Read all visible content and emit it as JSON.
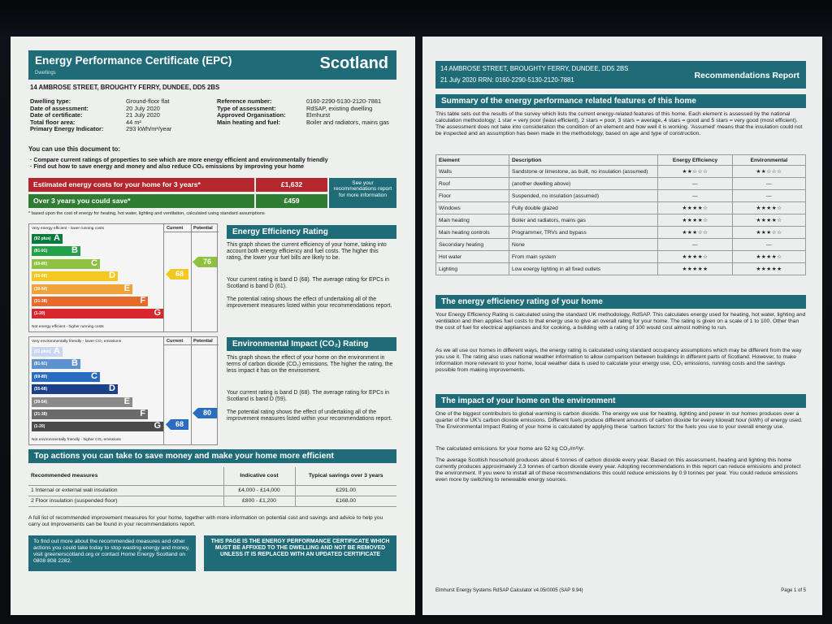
{
  "left": {
    "title": "Energy Performance Certificate (EPC)",
    "subtitle": "Dwellings",
    "country": "Scotland",
    "address": "14 AMBROSE STREET, BROUGHTY FERRY, DUNDEE, DD5 2BS",
    "details_left": [
      {
        "k": "Dwelling type:",
        "v": "Ground-floor flat"
      },
      {
        "k": "Date of assessment:",
        "v": "20 July 2020"
      },
      {
        "k": "Date of certificate:",
        "v": "21 July 2020"
      },
      {
        "k": "Total floor area:",
        "v": "44 m²"
      },
      {
        "k": "Primary Energy Indicator:",
        "v": "293 kWh/m²/year"
      }
    ],
    "details_right": [
      {
        "k": "Reference number:",
        "v": "0160-2290-5130-2120-7881"
      },
      {
        "k": "Type of assessment:",
        "v": "RdSAP, existing dwelling"
      },
      {
        "k": "Approved Organisation:",
        "v": "Elmhurst"
      },
      {
        "k": "Main heating and fuel:",
        "v": "Boiler and radiators, mains gas"
      }
    ],
    "use_title": "You can use this document to:",
    "use_items": [
      "Compare current ratings of properties to see which are more energy efficient and environmentally friendly",
      "Find out how to save energy and money and also reduce CO₂ emissions by improving your home"
    ],
    "cost_label": "Estimated energy costs for your home for 3 years*",
    "cost_value": "£1,632",
    "save_label": "Over 3 years you could save*",
    "save_value": "£459",
    "see_box": "See your recommendations report for more information",
    "footnote": "* based upon the cost of energy for heating, hot water, lighting and ventilation, calculated using standard assumptions",
    "ee_chart": {
      "top_label": "Very energy efficient - lower running costs",
      "bottom_label": "Not energy efficient - higher running costs",
      "col_current": "Current",
      "col_potential": "Potential",
      "current": "68",
      "potential": "76"
    },
    "ei_chart": {
      "top_label": "Very environmentally friendly - lower CO₂ emissions",
      "bottom_label": "Not environmentally friendly - higher CO₂ emissions",
      "col_current": "Current",
      "col_potential": "Potential",
      "current": "68",
      "potential": "80"
    },
    "bands": [
      {
        "range": "(92 plus)",
        "letter": "A"
      },
      {
        "range": "(81-91)",
        "letter": "B"
      },
      {
        "range": "(69-80)",
        "letter": "C"
      },
      {
        "range": "(55-68)",
        "letter": "D"
      },
      {
        "range": "(39-54)",
        "letter": "E"
      },
      {
        "range": "(21-38)",
        "letter": "F"
      },
      {
        "range": "(1-20)",
        "letter": "G"
      }
    ],
    "ee_title": "Energy Efficiency Rating",
    "ee_p1": "This graph shows the current efficiency of your home, taking into account both energy efficiency and fuel costs. The higher this rating, the lower your fuel bills are likely to be.",
    "ee_p2": "Your current rating is band D (68). The average rating for EPCs in Scotland is band D (61).",
    "ee_p3": "The potential rating shows the effect of undertaking all of the improvement measures listed within your recommendations report.",
    "ei_title": "Environmental Impact (CO₂) Rating",
    "ei_p1": "This graph shows the effect of your home on the environment in terms of carbon dioxide (CO₂) emissions. The higher the rating, the less impact it has on the environment.",
    "ei_p2": "Your current rating is band D (68). The average rating for EPCs in Scotland is band D (59).",
    "ei_p3": "The potential rating shows the effect of undertaking all of the improvement measures listed within your recommendations report.",
    "top_actions_title": "Top actions you can take to save money and make your home more efficient",
    "measures_head": [
      "Recommended measures",
      "Indicative cost",
      "Typical savings over 3 years"
    ],
    "measures": [
      [
        "1 Internal or external wall insulation",
        "£4,000 - £14,000",
        "£291.00"
      ],
      [
        "2 Floor insulation (suspended floor)",
        "£800 - £1,200",
        "£168.00"
      ]
    ],
    "full_list": "A full list of recommended improvement measures for your home, together with more information on potential cost and savings and advice to help you carry out improvements can be found in your recommendations report.",
    "find_out": "To find out more about the recommended measures and other actions you could take today to stop wasting energy and money, visit greenerscotland.org or contact Home Energy Scotland on 0808 808 2282.",
    "notice": "THIS PAGE IS THE ENERGY PERFORMANCE CERTIFICATE WHICH MUST BE AFFIXED TO THE DWELLING AND NOT BE REMOVED UNLESS IT IS REPLACED WITH AN UPDATED CERTIFICATE"
  },
  "right": {
    "address": "14 AMBROSE STREET, BROUGHTY FERRY, DUNDEE, DD5 2BS",
    "rrn": "21 July 2020 RRN: 0160-2290-5130-2120-7881",
    "report": "Recommendations Report",
    "summary_title": "Summary of the energy performance related features of this home",
    "summary_text": "This table sets out the results of the survey which lists the current energy-related features of this home. Each element is assessed by the national calculation methodology; 1 star = very poor (least efficient), 2 stars = poor, 3 stars = average, 4 stars = good and 5 stars = very good (most efficient). The assessment does not take into consideration the condition of an element and how well it is working. 'Assumed' means that the insulation could not be inspected and an assumption has been made in the methodology, based on age and type of construction.",
    "features_head": [
      "Element",
      "Description",
      "Energy Efficiency",
      "Environmental"
    ],
    "features": [
      [
        "Walls",
        "Sandstone or limestone, as built, no insulation (assumed)",
        "★★☆☆☆",
        "★★☆☆☆"
      ],
      [
        "Roof",
        "(another dwelling above)",
        "—",
        "—"
      ],
      [
        "Floor",
        "Suspended, no insulation (assumed)",
        "—",
        "—"
      ],
      [
        "Windows",
        "Fully double glazed",
        "★★★★☆",
        "★★★★☆"
      ],
      [
        "Main heating",
        "Boiler and radiators, mains gas",
        "★★★★☆",
        "★★★★☆"
      ],
      [
        "Main heating controls",
        "Programmer, TRVs and bypass",
        "★★★☆☆",
        "★★★☆☆"
      ],
      [
        "Secondary heating",
        "None",
        "—",
        "—"
      ],
      [
        "Hot water",
        "From main system",
        "★★★★☆",
        "★★★★☆"
      ],
      [
        "Lighting",
        "Low energy lighting in all fixed outlets",
        "★★★★★",
        "★★★★★"
      ]
    ],
    "eer_title": "The energy efficiency rating of your home",
    "eer_p1": "Your Energy Efficiency Rating is calculated using the standard UK methodology, RdSAP. This calculates energy used for heating, hot water, lighting and ventilation and then applies fuel costs to that energy use to give an overall rating for your home. The rating is given on a scale of 1 to 100. Other than the cost of fuel for electrical appliances and for cooking, a building with a rating of 100 would cost almost nothing to run.",
    "eer_p2": "As we all use our homes in different ways, the energy rating is calculated using standard occupancy assumptions which may be different from the way you use it. The rating also uses national weather information to allow comparison between buildings in different parts of Scotland. However, to make information more relevant to your home, local weather data is used to calculate your energy use, CO₂ emissions, running costs and the savings possible from making improvements.",
    "impact_title": "The impact of your home on the environment",
    "impact_p1": "One of the biggest contributors to global warming is carbon dioxide. The energy we use for heating, lighting and power in our homes produces over a quarter of the UK's carbon dioxide emissions. Different fuels produce different amounts of carbon dioxide for every kilowatt hour (kWh) of energy used. The Environmental Impact Rating of your home is calculated by applying these 'carbon factors' for the fuels you use to your overall energy use.",
    "impact_p2": "The calculated emissions for your home are 52 kg CO₂/m²/yr.",
    "impact_p3": "The average Scottish household produces about 6 tonnes of carbon dioxide every year. Based on this assessment, heating and lighting this home currently produces approximately 2.3 tonnes of carbon dioxide every year. Adopting recommendations in this report can reduce emissions and protect the environment. If you were to install all of these recommendations this could reduce emissions by 0.9 tonnes per year. You could reduce emissions even more by switching to renewable energy sources.",
    "footer_left": "Elmhurst Energy Systems RdSAP Calculator v4.05r0005 (SAP 9.94)",
    "footer_right": "Page 1 of 5"
  },
  "colors": {
    "teal": "#1f6c78",
    "cost_red": "#b5272e",
    "save_green": "#2f7d33",
    "ee_bands": [
      "#0b7a3e",
      "#23a04a",
      "#8dc13f",
      "#f3c820",
      "#f0a33a",
      "#e66b2b",
      "#d7262d"
    ],
    "ei_bands": [
      "#c9d7f0",
      "#5d92cf",
      "#2a6cc0",
      "#1c3f8a",
      "#8a8a8a",
      "#6a6a6a",
      "#4a4a4a"
    ]
  }
}
